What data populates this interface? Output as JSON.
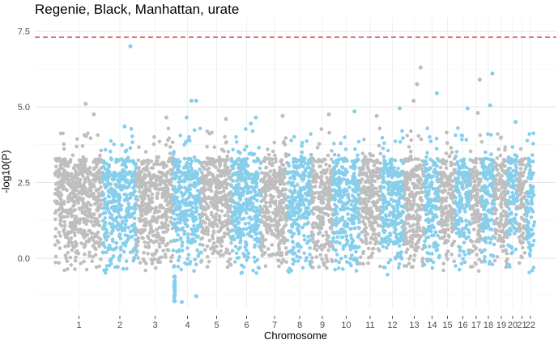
{
  "chart_data": {
    "type": "scatter",
    "title": "Regenie, Black, Manhattan, urate",
    "xlabel": "Chromosome",
    "ylabel": "-log10(P)",
    "ylim": [
      -1.6,
      7.9
    ],
    "yticks": [
      0.0,
      2.5,
      5.0,
      7.5
    ],
    "ytick_labels": [
      "0.0",
      "2.5",
      "5.0",
      "7.5"
    ],
    "grid": true,
    "legend": "none",
    "significance_line": 7.3,
    "colors": {
      "odd": "#bebebe",
      "even": "#87ceeb",
      "threshold": "#e0413a"
    },
    "chromosomes": [
      "1",
      "2",
      "3",
      "4",
      "5",
      "6",
      "7",
      "8",
      "9",
      "10",
      "11",
      "12",
      "13",
      "14",
      "15",
      "16",
      "17",
      "18",
      "19",
      "20",
      "21",
      "22"
    ],
    "notable_points": [
      {
        "chr": "1",
        "y": 4.75
      },
      {
        "chr": "1",
        "y": 5.1
      },
      {
        "chr": "2",
        "y": 7.0
      },
      {
        "chr": "2",
        "y": 4.35
      },
      {
        "chr": "3",
        "y": 4.65
      },
      {
        "chr": "4",
        "y": 5.2
      },
      {
        "chr": "4",
        "y": 5.2
      },
      {
        "chr": "4",
        "y": 4.65
      },
      {
        "chr": "4",
        "y": -1.45
      },
      {
        "chr": "4",
        "y": -1.25
      },
      {
        "chr": "5",
        "y": 4.6
      },
      {
        "chr": "6",
        "y": 4.65
      },
      {
        "chr": "6",
        "y": 4.45
      },
      {
        "chr": "7",
        "y": 4.7
      },
      {
        "chr": "9",
        "y": 4.75
      },
      {
        "chr": "10",
        "y": 4.85
      },
      {
        "chr": "11",
        "y": 4.7
      },
      {
        "chr": "12",
        "y": 4.95
      },
      {
        "chr": "13",
        "y": 6.3
      },
      {
        "chr": "13",
        "y": 5.75
      },
      {
        "chr": "13",
        "y": 5.2
      },
      {
        "chr": "14",
        "y": 5.45
      },
      {
        "chr": "16",
        "y": 4.95
      },
      {
        "chr": "17",
        "y": 5.9
      },
      {
        "chr": "17",
        "y": 4.8
      },
      {
        "chr": "18",
        "y": 6.1
      },
      {
        "chr": "18",
        "y": 5.05
      },
      {
        "chr": "20",
        "y": 4.5
      }
    ]
  }
}
